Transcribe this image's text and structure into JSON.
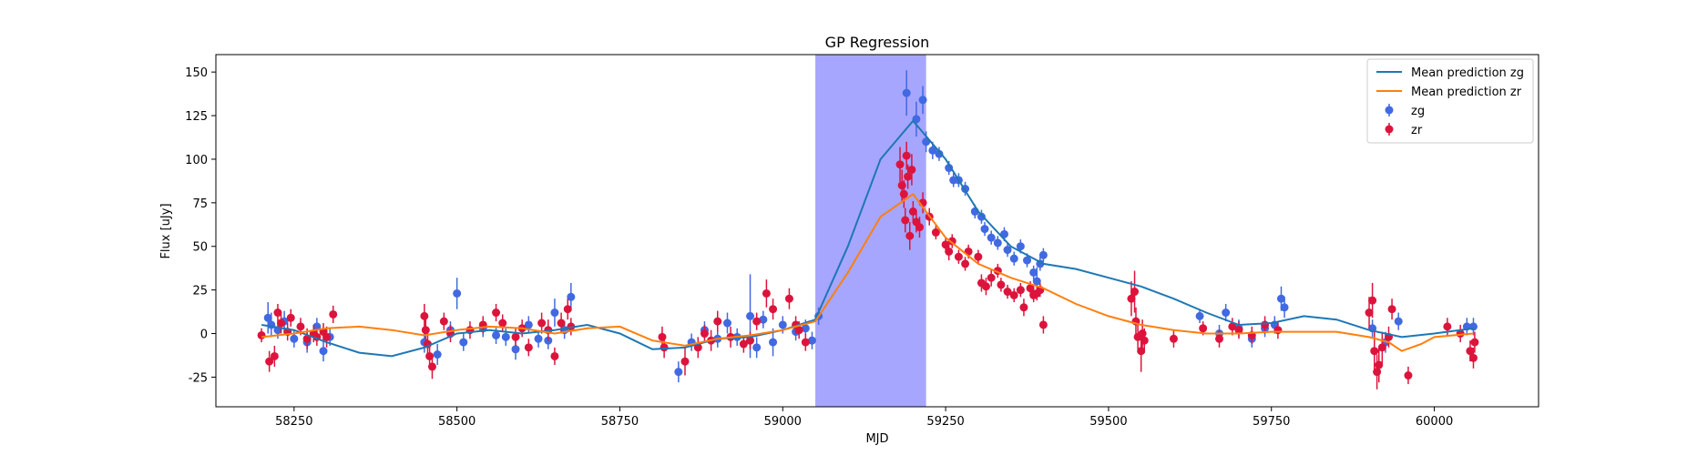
{
  "chart_data": {
    "type": "scatter",
    "title": "GP Regression",
    "xlabel": "MJD",
    "ylabel": "Flux [uJy]",
    "xlim": [
      58130,
      60160
    ],
    "ylim": [
      -42,
      160
    ],
    "xticks": [
      58250,
      58500,
      58750,
      59000,
      59250,
      59500,
      59750,
      60000
    ],
    "yticks": [
      -25,
      0,
      25,
      50,
      75,
      100,
      125,
      150
    ],
    "grid": false,
    "legend_position": "top-right",
    "highlight_span": {
      "x0": 59050,
      "x1": 59220,
      "color": "#a6a6ff"
    },
    "series": [
      {
        "name": "Mean prediction zg",
        "kind": "line",
        "color": "#1f77b4",
        "x": [
          58200,
          58250,
          58300,
          58350,
          58400,
          58450,
          58500,
          58550,
          58600,
          58650,
          58700,
          58750,
          58800,
          58850,
          58900,
          58950,
          59000,
          59050,
          59100,
          59150,
          59200,
          59250,
          59300,
          59350,
          59400,
          59450,
          59500,
          59550,
          59600,
          59650,
          59700,
          59750,
          59800,
          59850,
          59900,
          59950,
          60000,
          60060
        ],
        "y": [
          5,
          2,
          -5,
          -11,
          -13,
          -8,
          0,
          2,
          0,
          2,
          5,
          0,
          -9,
          -8,
          -3,
          -2,
          2,
          8,
          50,
          100,
          122,
          100,
          70,
          50,
          40,
          37,
          32,
          27,
          20,
          12,
          5,
          6,
          10,
          8,
          2,
          -2,
          0,
          3
        ]
      },
      {
        "name": "Mean prediction zr",
        "kind": "line",
        "color": "#ff7f0e",
        "x": [
          58200,
          58250,
          58300,
          58350,
          58400,
          58450,
          58500,
          58550,
          58600,
          58650,
          58700,
          58750,
          58800,
          58850,
          58900,
          58950,
          59000,
          59050,
          59100,
          59150,
          59200,
          59250,
          59300,
          59350,
          59400,
          59450,
          59500,
          59550,
          59600,
          59650,
          59700,
          59750,
          59800,
          59850,
          59900,
          59930,
          59950,
          59980,
          60000,
          60060
        ],
        "y": [
          -2,
          0,
          3,
          4,
          2,
          -1,
          2,
          4,
          3,
          0,
          3,
          4,
          -4,
          -7,
          -3,
          -1,
          2,
          7,
          35,
          67,
          80,
          55,
          40,
          32,
          26,
          17,
          10,
          5,
          2,
          0,
          0,
          1,
          1,
          1,
          -2,
          -5,
          -10,
          -6,
          -2,
          0
        ]
      },
      {
        "name": "zg",
        "kind": "errorbar",
        "color": "#4169e1",
        "points": [
          [
            58210,
            9,
            9
          ],
          [
            58215,
            5,
            7
          ],
          [
            58225,
            2,
            5
          ],
          [
            58235,
            7,
            6
          ],
          [
            58250,
            -3,
            5
          ],
          [
            58270,
            -5,
            6
          ],
          [
            58285,
            4,
            5
          ],
          [
            58295,
            -10,
            6
          ],
          [
            58305,
            -2,
            5
          ],
          [
            58450,
            -5,
            6
          ],
          [
            58470,
            -12,
            6
          ],
          [
            58490,
            2,
            5
          ],
          [
            58500,
            23,
            9
          ],
          [
            58510,
            -5,
            5
          ],
          [
            58540,
            3,
            5
          ],
          [
            58560,
            -1,
            5
          ],
          [
            58575,
            -2,
            5
          ],
          [
            58590,
            -9,
            6
          ],
          [
            58610,
            5,
            5
          ],
          [
            58625,
            -3,
            5
          ],
          [
            58640,
            -4,
            5
          ],
          [
            58650,
            12,
            8
          ],
          [
            58665,
            2,
            5
          ],
          [
            58675,
            21,
            8
          ],
          [
            58840,
            -22,
            6
          ],
          [
            58860,
            -5,
            5
          ],
          [
            58880,
            2,
            5
          ],
          [
            58900,
            -3,
            5
          ],
          [
            58915,
            6,
            6
          ],
          [
            58930,
            -2,
            5
          ],
          [
            58950,
            10,
            24
          ],
          [
            58960,
            -8,
            6
          ],
          [
            58970,
            8,
            5
          ],
          [
            58985,
            -5,
            8
          ],
          [
            59000,
            5,
            5
          ],
          [
            59020,
            1,
            5
          ],
          [
            59035,
            3,
            5
          ],
          [
            59045,
            -4,
            5
          ],
          [
            59055,
            10,
            5
          ],
          [
            59190,
            138,
            13
          ],
          [
            59205,
            123,
            10
          ],
          [
            59215,
            134,
            8
          ],
          [
            59220,
            110,
            6
          ],
          [
            59230,
            105,
            5
          ],
          [
            59240,
            103,
            4
          ],
          [
            59255,
            95,
            4
          ],
          [
            59262,
            88,
            4
          ],
          [
            59270,
            88,
            4
          ],
          [
            59280,
            83,
            4
          ],
          [
            59295,
            70,
            4
          ],
          [
            59305,
            67,
            4
          ],
          [
            59310,
            60,
            4
          ],
          [
            59320,
            55,
            4
          ],
          [
            59330,
            52,
            4
          ],
          [
            59340,
            57,
            4
          ],
          [
            59345,
            48,
            4
          ],
          [
            59355,
            43,
            4
          ],
          [
            59365,
            50,
            4
          ],
          [
            59375,
            42,
            4
          ],
          [
            59385,
            35,
            4
          ],
          [
            59390,
            30,
            8
          ],
          [
            59395,
            40,
            4
          ],
          [
            59400,
            45,
            4
          ],
          [
            59640,
            10,
            4
          ],
          [
            59670,
            0,
            5
          ],
          [
            59680,
            12,
            5
          ],
          [
            59700,
            3,
            5
          ],
          [
            59720,
            -3,
            5
          ],
          [
            59740,
            3,
            5
          ],
          [
            59755,
            5,
            5
          ],
          [
            59765,
            20,
            7
          ],
          [
            59770,
            15,
            6
          ],
          [
            59905,
            3,
            5
          ],
          [
            59925,
            -5,
            6
          ],
          [
            59945,
            7,
            5
          ],
          [
            60050,
            4,
            5
          ],
          [
            60060,
            4,
            5
          ]
        ]
      },
      {
        "name": "zr",
        "kind": "errorbar",
        "color": "#dc143c",
        "points": [
          [
            58200,
            -1,
            4
          ],
          [
            58212,
            -16,
            6
          ],
          [
            58220,
            -13,
            6
          ],
          [
            58225,
            12,
            5
          ],
          [
            58230,
            6,
            6
          ],
          [
            58240,
            1,
            5
          ],
          [
            58245,
            9,
            5
          ],
          [
            58260,
            4,
            5
          ],
          [
            58270,
            -3,
            6
          ],
          [
            58280,
            0,
            5
          ],
          [
            58285,
            -2,
            5
          ],
          [
            58295,
            1,
            5
          ],
          [
            58300,
            -2,
            6
          ],
          [
            58310,
            11,
            5
          ],
          [
            58450,
            10,
            7
          ],
          [
            58452,
            2,
            6
          ],
          [
            58455,
            -6,
            6
          ],
          [
            58458,
            -13,
            7
          ],
          [
            58462,
            -19,
            7
          ],
          [
            58480,
            7,
            5
          ],
          [
            58490,
            0,
            5
          ],
          [
            58520,
            2,
            5
          ],
          [
            58540,
            5,
            5
          ],
          [
            58560,
            12,
            5
          ],
          [
            58570,
            6,
            5
          ],
          [
            58590,
            -2,
            5
          ],
          [
            58600,
            3,
            5
          ],
          [
            58610,
            -8,
            5
          ],
          [
            58630,
            6,
            6
          ],
          [
            58640,
            2,
            6
          ],
          [
            58650,
            -13,
            5
          ],
          [
            58660,
            6,
            6
          ],
          [
            58670,
            14,
            6
          ],
          [
            58675,
            4,
            5
          ],
          [
            58815,
            -2,
            6
          ],
          [
            58818,
            -8,
            6
          ],
          [
            58850,
            -16,
            8
          ],
          [
            58870,
            -8,
            6
          ],
          [
            58880,
            0,
            5
          ],
          [
            58890,
            -4,
            6
          ],
          [
            58900,
            7,
            6
          ],
          [
            58920,
            -2,
            6
          ],
          [
            58940,
            -6,
            5
          ],
          [
            58950,
            -4,
            5
          ],
          [
            58960,
            7,
            5
          ],
          [
            58975,
            23,
            8
          ],
          [
            58985,
            14,
            6
          ],
          [
            59010,
            20,
            6
          ],
          [
            59020,
            5,
            5
          ],
          [
            59025,
            2,
            5
          ],
          [
            59035,
            -5,
            5
          ],
          [
            59180,
            97,
            10
          ],
          [
            59183,
            85,
            9
          ],
          [
            59186,
            80,
            8
          ],
          [
            59188,
            65,
            7
          ],
          [
            59190,
            102,
            8
          ],
          [
            59192,
            90,
            7
          ],
          [
            59195,
            56,
            8
          ],
          [
            59198,
            94,
            9
          ],
          [
            59200,
            70,
            6
          ],
          [
            59205,
            64,
            6
          ],
          [
            59210,
            61,
            6
          ],
          [
            59215,
            75,
            6
          ],
          [
            59225,
            67,
            5
          ],
          [
            59235,
            58,
            4
          ],
          [
            59250,
            51,
            4
          ],
          [
            59255,
            47,
            5
          ],
          [
            59260,
            53,
            4
          ],
          [
            59270,
            44,
            4
          ],
          [
            59280,
            40,
            4
          ],
          [
            59285,
            47,
            4
          ],
          [
            59300,
            44,
            4
          ],
          [
            59305,
            29,
            5
          ],
          [
            59312,
            27,
            5
          ],
          [
            59320,
            32,
            5
          ],
          [
            59330,
            36,
            4
          ],
          [
            59335,
            28,
            4
          ],
          [
            59345,
            24,
            4
          ],
          [
            59355,
            22,
            4
          ],
          [
            59365,
            25,
            4
          ],
          [
            59370,
            15,
            5
          ],
          [
            59380,
            26,
            4
          ],
          [
            59385,
            22,
            4
          ],
          [
            59390,
            23,
            4
          ],
          [
            59395,
            25,
            4
          ],
          [
            59400,
            5,
            5
          ],
          [
            59535,
            20,
            10
          ],
          [
            59540,
            24,
            12
          ],
          [
            59542,
            7,
            8
          ],
          [
            59545,
            -2,
            7
          ],
          [
            59550,
            -10,
            12
          ],
          [
            59552,
            0,
            8
          ],
          [
            59555,
            -4,
            7
          ],
          [
            59600,
            -3,
            5
          ],
          [
            59645,
            3,
            4
          ],
          [
            59670,
            -3,
            5
          ],
          [
            59690,
            4,
            5
          ],
          [
            59700,
            2,
            5
          ],
          [
            59720,
            -1,
            5
          ],
          [
            59740,
            5,
            5
          ],
          [
            59760,
            2,
            5
          ],
          [
            59900,
            12,
            9
          ],
          [
            59905,
            19,
            10
          ],
          [
            59908,
            -10,
            12
          ],
          [
            59912,
            -22,
            10
          ],
          [
            59915,
            -18,
            10
          ],
          [
            59920,
            -8,
            9
          ],
          [
            59930,
            -2,
            6
          ],
          [
            59935,
            14,
            6
          ],
          [
            59960,
            -24,
            5
          ],
          [
            60020,
            4,
            5
          ],
          [
            60040,
            0,
            5
          ],
          [
            60055,
            -10,
            6
          ],
          [
            60060,
            -14,
            6
          ],
          [
            60062,
            -5,
            6
          ]
        ]
      }
    ]
  }
}
